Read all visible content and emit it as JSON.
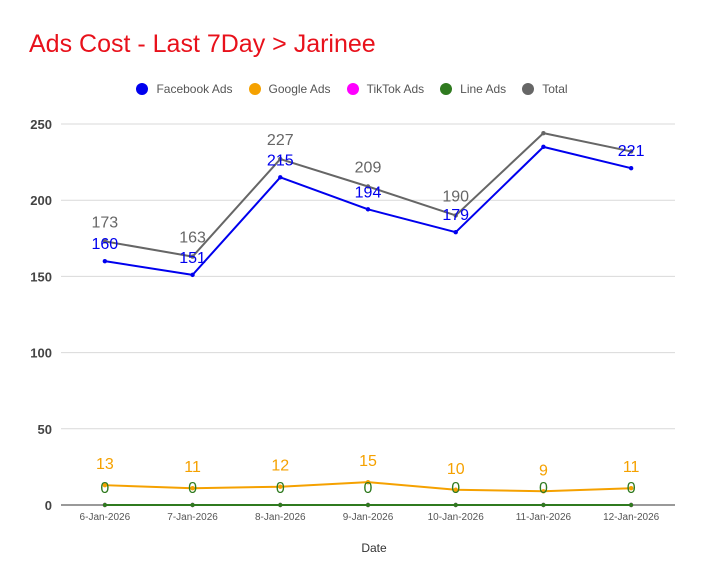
{
  "chart_data": {
    "type": "line",
    "title": "Ads Cost - Last 7Day > Jarinee",
    "title_color": "#e8111b",
    "xlabel": "Date",
    "ylabel": "",
    "categories": [
      "6-Jan-2026",
      "7-Jan-2026",
      "8-Jan-2026",
      "9-Jan-2026",
      "10-Jan-2026",
      "11-Jan-2026",
      "12-Jan-2026"
    ],
    "ylim": [
      0,
      250
    ],
    "yticks": [
      0,
      50,
      100,
      150,
      200,
      250
    ],
    "grid": true,
    "legend_position": "top-center",
    "series": [
      {
        "name": "Facebook Ads",
        "color": "#0000ee",
        "values": [
          160,
          151,
          215,
          194,
          179,
          235,
          221
        ],
        "labels": [
          "160",
          "151",
          "215",
          "194",
          "179",
          "",
          "221"
        ]
      },
      {
        "name": "Google Ads",
        "color": "#f5a100",
        "values": [
          13,
          11,
          12,
          15,
          10,
          9,
          11
        ],
        "labels": [
          "13",
          "11",
          "12",
          "15",
          "10",
          "9",
          "11"
        ]
      },
      {
        "name": "TikTok Ads",
        "color": "#ff00ff",
        "values": [
          0,
          0,
          0,
          0,
          0,
          0,
          0
        ],
        "labels": [
          "",
          "",
          "",
          "",
          "",
          "",
          ""
        ]
      },
      {
        "name": "Line Ads",
        "color": "#2f7a1f",
        "values": [
          0,
          0,
          0,
          0,
          0,
          0,
          0
        ],
        "labels": [
          "0",
          "0",
          "0",
          "0",
          "0",
          "0",
          "0"
        ]
      },
      {
        "name": "Total",
        "color": "#666666",
        "values": [
          173,
          163,
          227,
          209,
          190,
          244,
          232
        ],
        "labels": [
          "173",
          "163",
          "227",
          "209",
          "190",
          "",
          ""
        ]
      }
    ]
  }
}
